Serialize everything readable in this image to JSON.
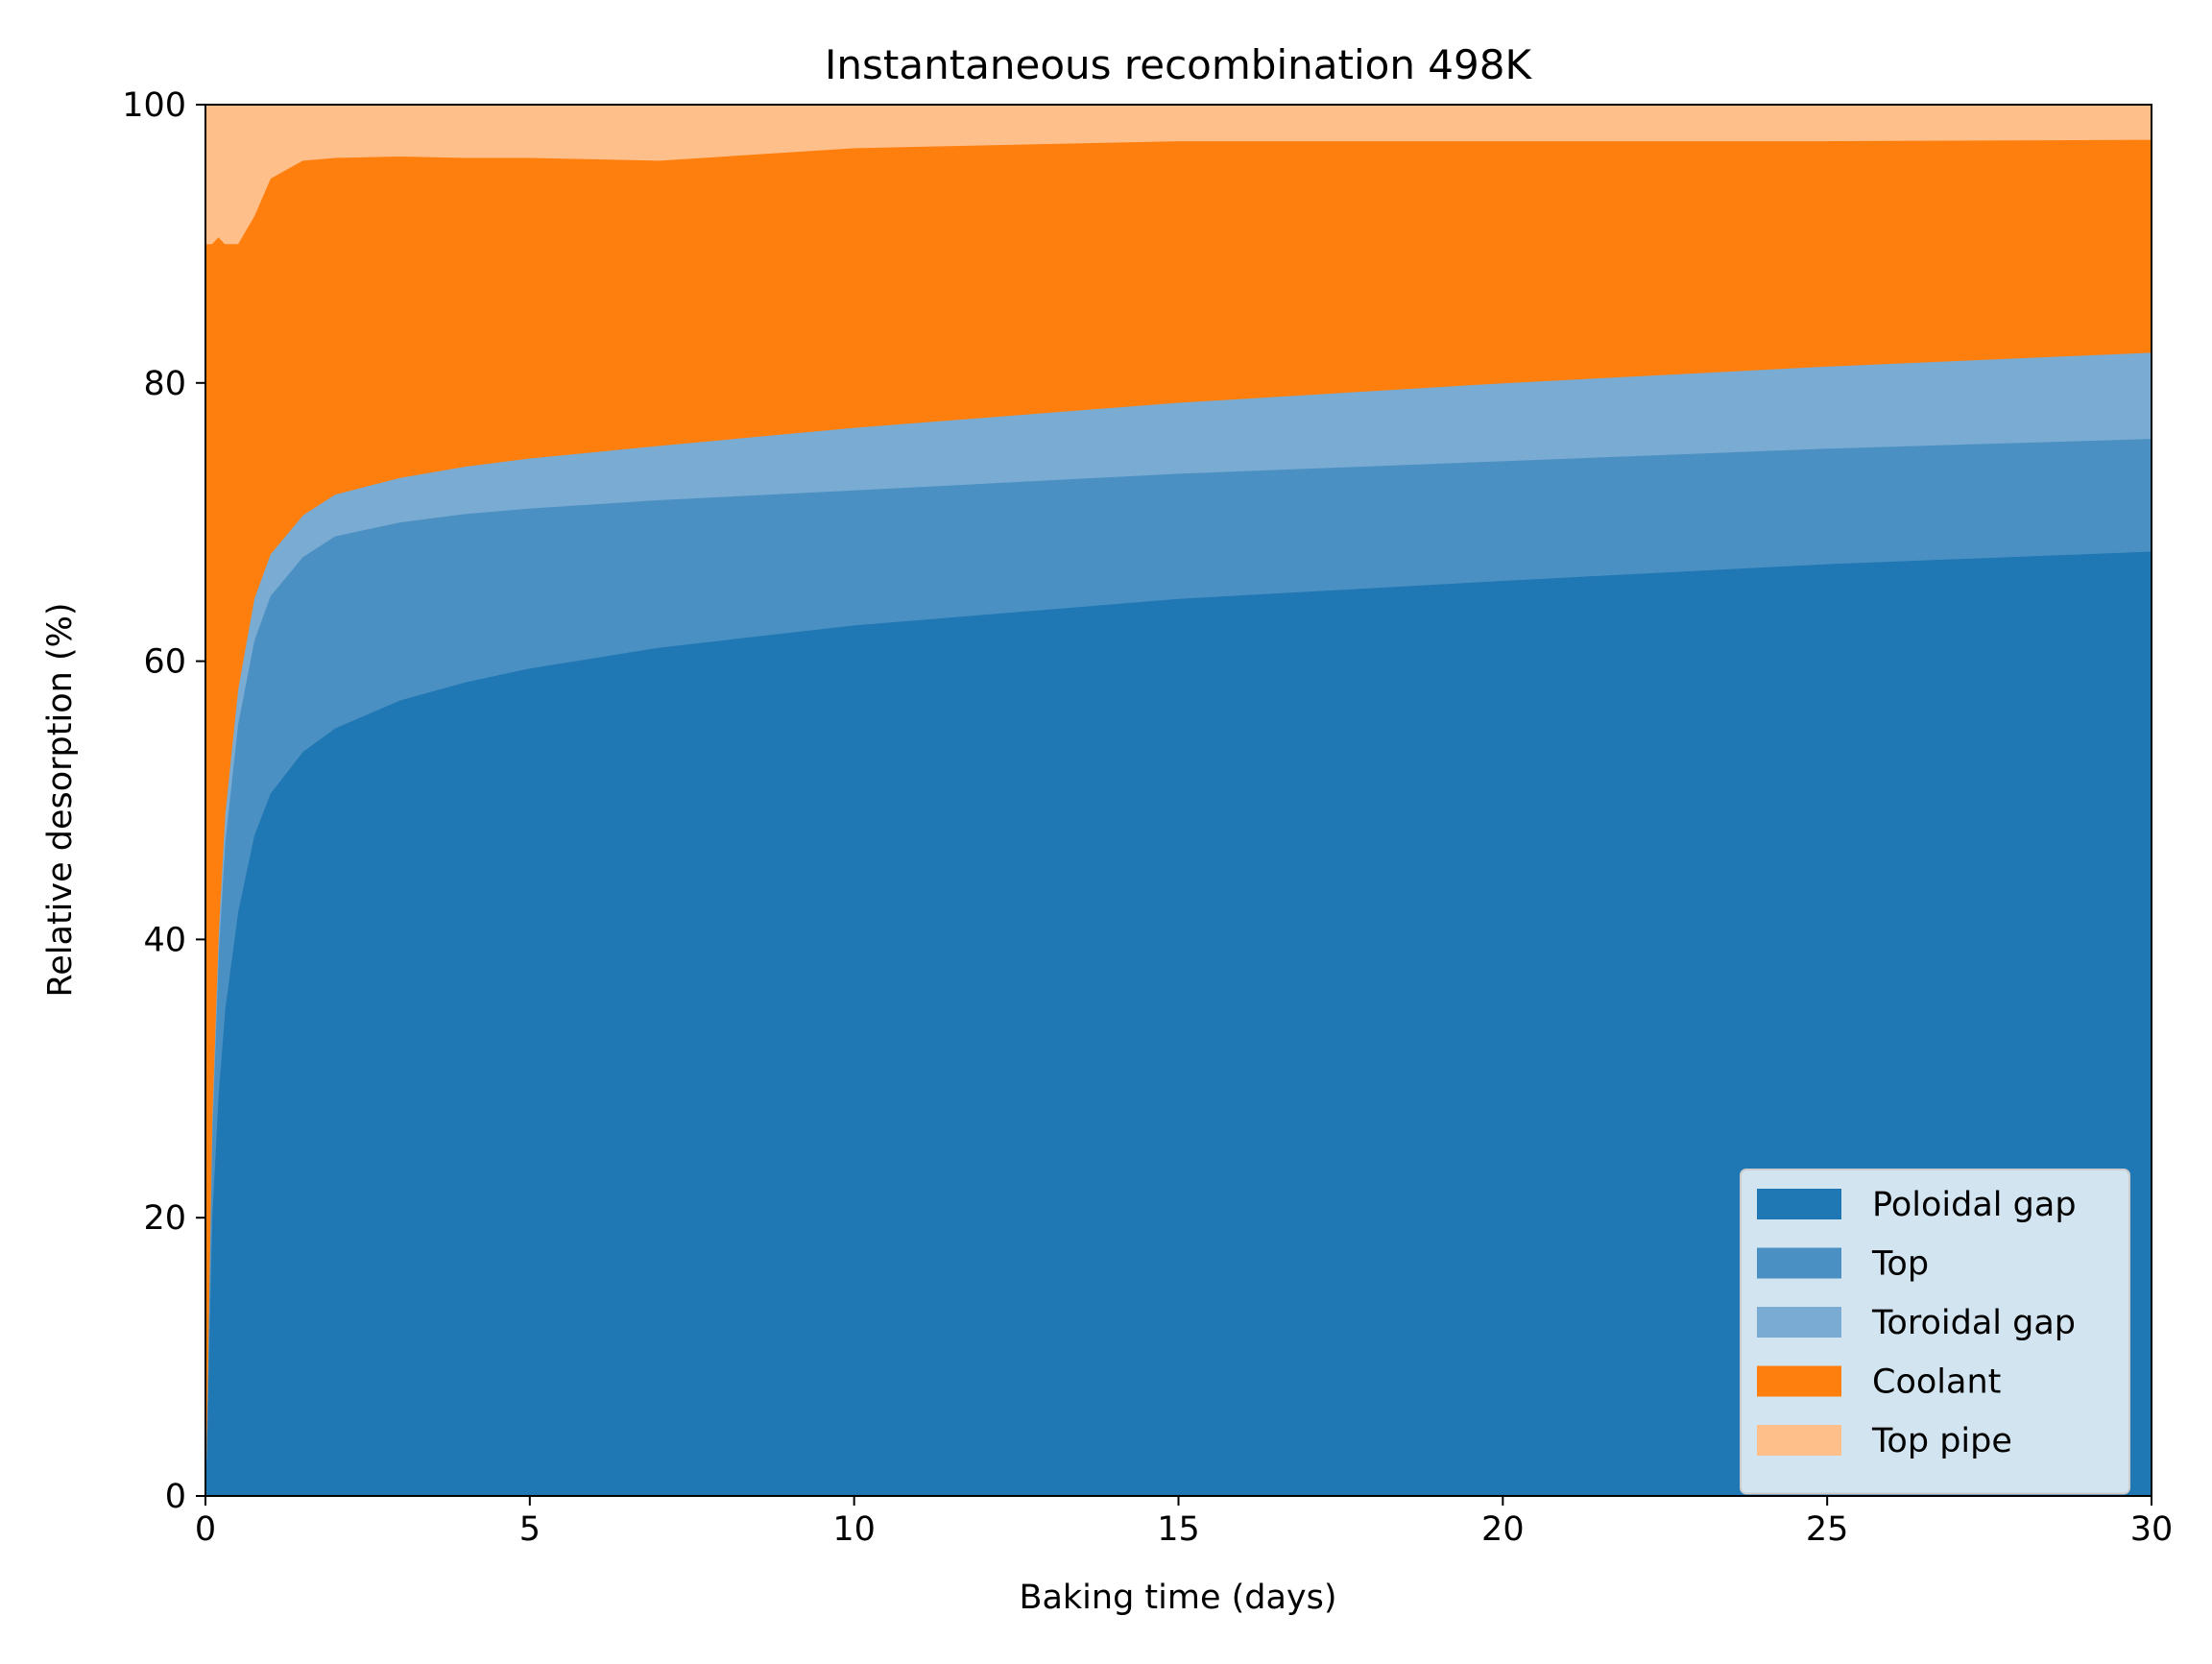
{
  "chart_data": {
    "type": "area",
    "stacked": true,
    "title": "Instantaneous recombination 498K",
    "xlabel": "Baking time (days)",
    "ylabel": "Relative desorption (%)",
    "xlim": [
      0,
      30
    ],
    "ylim": [
      0,
      100
    ],
    "xticks": [
      0,
      5,
      10,
      15,
      20,
      25,
      30
    ],
    "yticks": [
      0,
      20,
      40,
      60,
      80,
      100
    ],
    "grid": false,
    "legend_position": "bottom-right",
    "x": [
      0,
      0.05,
      0.1,
      0.2,
      0.3,
      0.5,
      0.75,
      1,
      1.5,
      2,
      3,
      4,
      5,
      7,
      10,
      15,
      20,
      25,
      30
    ],
    "series": [
      {
        "name": "Poloidal gap",
        "color": "#1f77b4",
        "values": [
          0,
          10,
          20,
          29,
          35,
          42,
          47.5,
          50.5,
          53.5,
          55.2,
          57.2,
          58.5,
          59.5,
          61.0,
          62.6,
          64.5,
          65.8,
          67.0,
          67.9
        ]
      },
      {
        "name": "Top",
        "color": "#4b90c3",
        "values": [
          0,
          3,
          6,
          10,
          12,
          13.5,
          14.0,
          14.2,
          14.0,
          13.8,
          12.8,
          12.1,
          11.5,
          10.6,
          9.7,
          9.0,
          8.6,
          8.3,
          8.1
        ]
      },
      {
        "name": "Toroidal gap",
        "color": "#7aabd2",
        "values": [
          0,
          0.5,
          1,
          1.5,
          2,
          2.5,
          3.0,
          3.0,
          3.0,
          3.0,
          3.2,
          3.4,
          3.6,
          3.9,
          4.5,
          5.1,
          5.6,
          5.9,
          6.2
        ]
      },
      {
        "name": "Coolant",
        "color": "#ff7f0e",
        "values": [
          90,
          76.5,
          63,
          50,
          41,
          32.0,
          27.5,
          27.0,
          25.5,
          24.2,
          23.1,
          22.2,
          21.6,
          20.5,
          20.1,
          18.8,
          17.4,
          16.2,
          15.3
        ]
      },
      {
        "name": "Top pipe",
        "color": "#ffbf8a",
        "values": [
          10,
          10,
          10,
          9.5,
          10,
          10.0,
          8.0,
          5.3,
          4.0,
          3.8,
          3.7,
          3.8,
          3.8,
          4.0,
          3.1,
          2.6,
          2.6,
          2.6,
          2.5
        ]
      }
    ]
  }
}
